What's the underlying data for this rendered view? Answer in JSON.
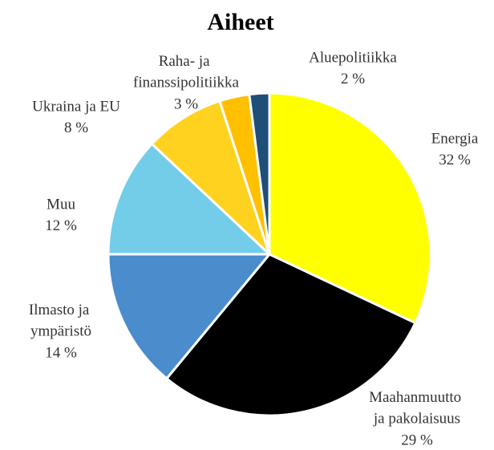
{
  "chart_data": {
    "type": "pie",
    "title": "Aiheet",
    "categories": [
      "Energia",
      "Maahanmuutto ja pakolaisuus",
      "Ilmasto ja ympäristö",
      "Muu",
      "Ukraina ja EU",
      "Raha- ja finanssipolitiikka",
      "Aluepolitiikka"
    ],
    "values": [
      32,
      29,
      14,
      12,
      8,
      3,
      2
    ],
    "value_labels": [
      "32 %",
      "29 %",
      "14 %",
      "12 %",
      "8 %",
      "3 %",
      "2 %"
    ],
    "colors": [
      "#ffff00",
      "#000000",
      "#4a8ccc",
      "#73cde9",
      "#ffd21f",
      "#ffc000",
      "#1f4e79"
    ]
  }
}
